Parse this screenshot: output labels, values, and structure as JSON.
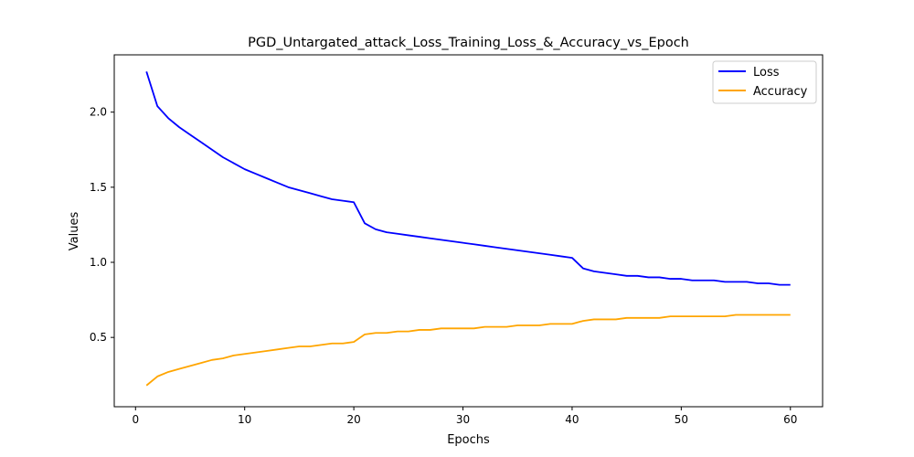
{
  "chart_data": {
    "type": "line",
    "title": "PGD_Untargated_attack_Loss_Training_Loss_&_Accuracy_vs_Epoch",
    "xlabel": "Epochs",
    "ylabel": "Values",
    "xlim": [
      -1.95,
      62.95
    ],
    "ylim": [
      0.0385,
      2.3815
    ],
    "xticks": [
      0,
      10,
      20,
      30,
      40,
      50,
      60
    ],
    "yticks": [
      0.5,
      1.0,
      1.5,
      2.0
    ],
    "xtick_labels": [
      "0",
      "10",
      "20",
      "30",
      "40",
      "50",
      "60"
    ],
    "ytick_labels": [
      "0.5",
      "1.0",
      "1.5",
      "2.0"
    ],
    "grid": false,
    "legend_position": "top-right",
    "x": [
      1,
      2,
      3,
      4,
      5,
      6,
      7,
      8,
      9,
      10,
      11,
      12,
      13,
      14,
      15,
      16,
      17,
      18,
      19,
      20,
      21,
      22,
      23,
      24,
      25,
      26,
      27,
      28,
      29,
      30,
      31,
      32,
      33,
      34,
      35,
      36,
      37,
      38,
      39,
      40,
      41,
      42,
      43,
      44,
      45,
      46,
      47,
      48,
      49,
      50,
      51,
      52,
      53,
      54,
      55,
      56,
      57,
      58,
      59,
      60
    ],
    "series": [
      {
        "name": "Loss",
        "color": "#0000ff",
        "values": [
          2.27,
          2.04,
          1.96,
          1.9,
          1.85,
          1.8,
          1.75,
          1.7,
          1.66,
          1.62,
          1.59,
          1.56,
          1.53,
          1.5,
          1.48,
          1.46,
          1.44,
          1.42,
          1.41,
          1.4,
          1.26,
          1.22,
          1.2,
          1.19,
          1.18,
          1.17,
          1.16,
          1.15,
          1.14,
          1.13,
          1.12,
          1.11,
          1.1,
          1.09,
          1.08,
          1.07,
          1.06,
          1.05,
          1.04,
          1.03,
          0.96,
          0.94,
          0.93,
          0.92,
          0.91,
          0.91,
          0.9,
          0.9,
          0.89,
          0.89,
          0.88,
          0.88,
          0.88,
          0.87,
          0.87,
          0.87,
          0.86,
          0.86,
          0.85,
          0.85
        ]
      },
      {
        "name": "Accuracy",
        "color": "#ffa500",
        "values": [
          0.18,
          0.24,
          0.27,
          0.29,
          0.31,
          0.33,
          0.35,
          0.36,
          0.38,
          0.39,
          0.4,
          0.41,
          0.42,
          0.43,
          0.44,
          0.44,
          0.45,
          0.46,
          0.46,
          0.47,
          0.52,
          0.53,
          0.53,
          0.54,
          0.54,
          0.55,
          0.55,
          0.56,
          0.56,
          0.56,
          0.56,
          0.57,
          0.57,
          0.57,
          0.58,
          0.58,
          0.58,
          0.59,
          0.59,
          0.59,
          0.61,
          0.62,
          0.62,
          0.62,
          0.63,
          0.63,
          0.63,
          0.63,
          0.64,
          0.64,
          0.64,
          0.64,
          0.64,
          0.64,
          0.65,
          0.65,
          0.65,
          0.65,
          0.65,
          0.65
        ]
      }
    ]
  }
}
